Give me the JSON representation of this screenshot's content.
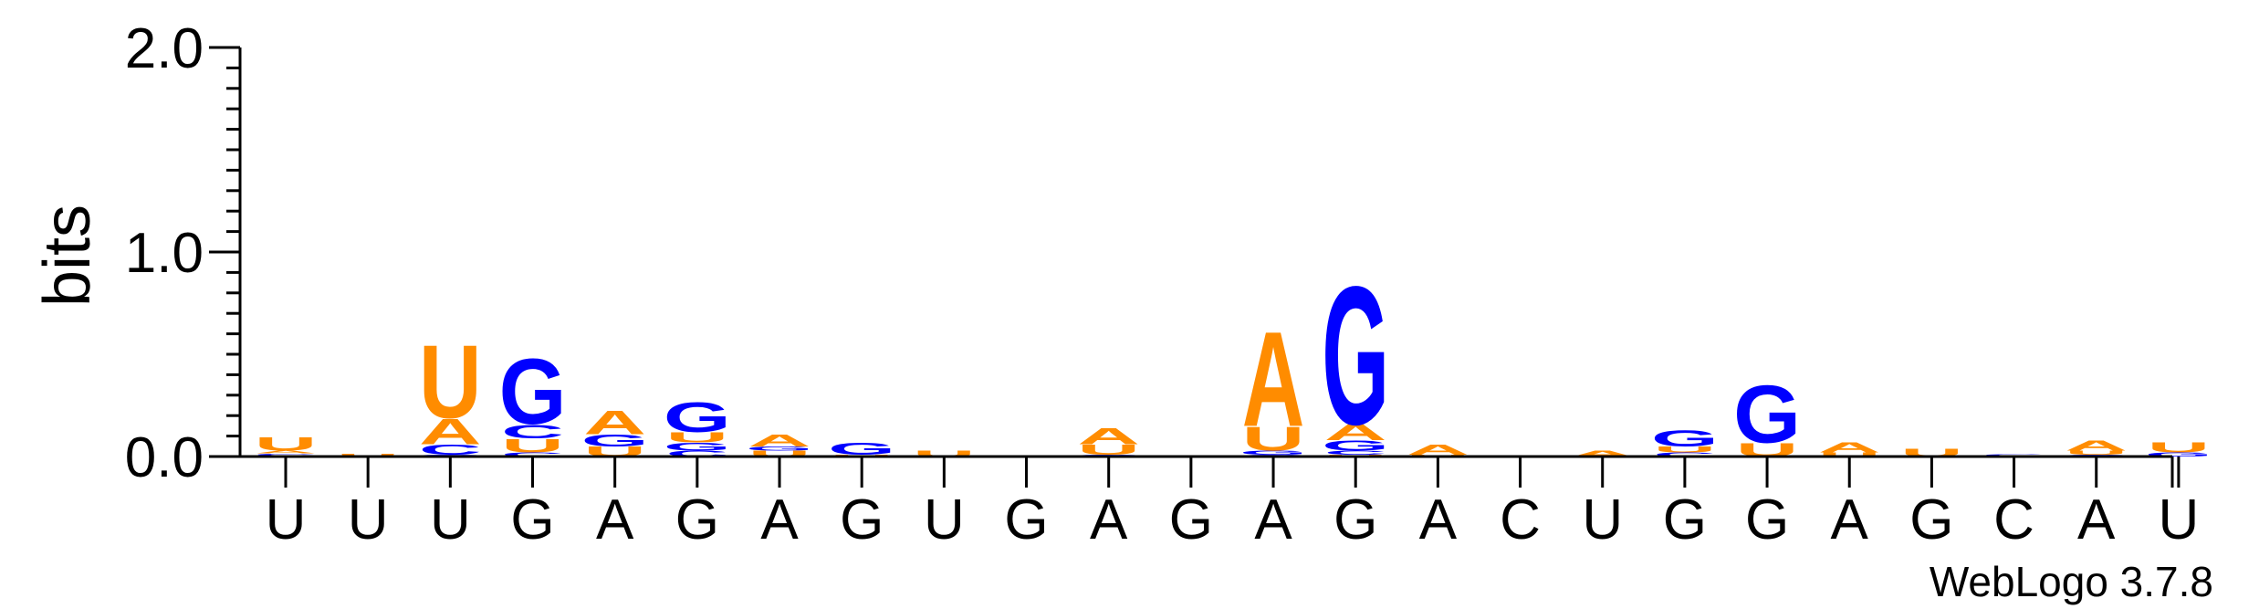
{
  "chart_data": {
    "type": "sequence-logo",
    "ylabel": "bits",
    "ylim": [
      0,
      2.0
    ],
    "yticks": [
      {
        "value": 0.0,
        "label": "0.0"
      },
      {
        "value": 1.0,
        "label": "1.0"
      },
      {
        "value": 2.0,
        "label": "2.0"
      }
    ],
    "yminor_step": 0.1,
    "x_labels": [
      "U",
      "U",
      "U",
      "G",
      "A",
      "G",
      "A",
      "G",
      "U",
      "G",
      "A",
      "G",
      "A",
      "G",
      "A",
      "C",
      "U",
      "G",
      "G",
      "A",
      "G",
      "C",
      "A",
      "U"
    ],
    "colors": {
      "A": "#ff8c00",
      "U": "#ff8c00",
      "G": "#0000ff",
      "C": "#0000ff"
    },
    "positions": [
      [
        [
          "G",
          0.005
        ],
        [
          "C",
          0.01
        ],
        [
          "A",
          0.015
        ],
        [
          "U",
          0.07
        ]
      ],
      [
        [
          "G",
          0.005
        ],
        [
          "U",
          0.01
        ]
      ],
      [
        [
          "G",
          0.01
        ],
        [
          "C",
          0.05
        ],
        [
          "A",
          0.13
        ],
        [
          "U",
          0.37
        ]
      ],
      [
        [
          "C",
          0.02
        ],
        [
          "U",
          0.07
        ],
        [
          "C",
          0.07
        ],
        [
          "G",
          0.33
        ]
      ],
      [
        [
          "U",
          0.05
        ],
        [
          "G",
          0.06
        ],
        [
          "A",
          0.12
        ]
      ],
      [
        [
          "C",
          0.03
        ],
        [
          "G",
          0.04
        ],
        [
          "U",
          0.05
        ],
        [
          "G",
          0.15
        ]
      ],
      [
        [
          "U",
          0.03
        ],
        [
          "G",
          0.02
        ],
        [
          "A",
          0.06
        ]
      ],
      [
        [
          "U",
          0.01
        ],
        [
          "G",
          0.06
        ]
      ],
      [
        [
          "U",
          0.03
        ]
      ],
      [
        [
          "G",
          0.003
        ]
      ],
      [
        [
          "G",
          0.01
        ],
        [
          "U",
          0.05
        ],
        [
          "A",
          0.08
        ]
      ],
      [
        [
          "G",
          0.005
        ]
      ],
      [
        [
          "C",
          0.01
        ],
        [
          "G",
          0.02
        ],
        [
          "U",
          0.12
        ],
        [
          "A",
          0.48
        ]
      ],
      [
        [
          "U",
          0.01
        ],
        [
          "C",
          0.02
        ],
        [
          "G",
          0.05
        ],
        [
          "A",
          0.08
        ],
        [
          "G",
          0.7
        ]
      ],
      [
        [
          "U",
          0.01
        ],
        [
          "A",
          0.05
        ]
      ],
      [
        [
          "C",
          0.003
        ]
      ],
      [
        [
          "A",
          0.03
        ]
      ],
      [
        [
          "C",
          0.02
        ],
        [
          "U",
          0.03
        ],
        [
          "G",
          0.08
        ]
      ],
      [
        [
          "U",
          0.07
        ],
        [
          "G",
          0.29
        ]
      ],
      [
        [
          "U",
          0.02
        ],
        [
          "A",
          0.05
        ]
      ],
      [
        [
          "U",
          0.04
        ]
      ],
      [
        [
          "G",
          0.005
        ],
        [
          "C",
          0.005
        ]
      ],
      [
        [
          "G",
          0.01
        ],
        [
          "U",
          0.02
        ],
        [
          "A",
          0.05
        ]
      ],
      [
        [
          "G",
          0.02
        ],
        [
          "U",
          0.05
        ]
      ]
    ]
  },
  "footer": {
    "label": "WebLogo 3.7.8"
  }
}
